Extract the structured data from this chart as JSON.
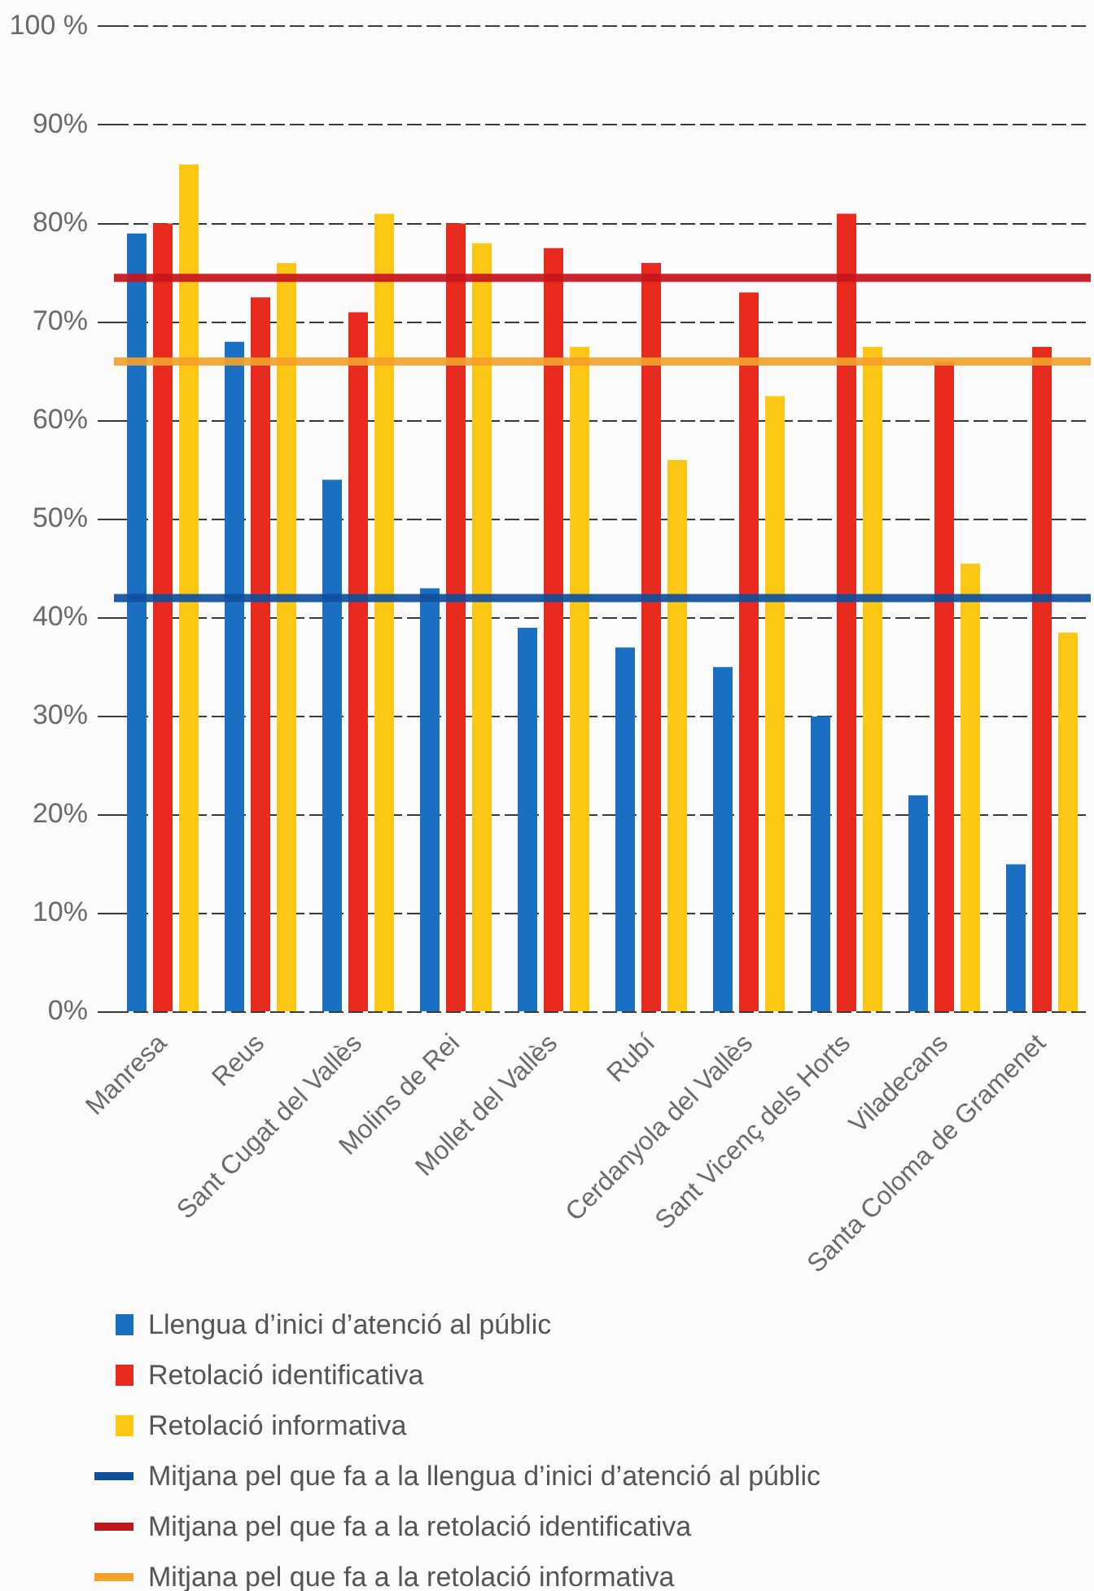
{
  "chart_data": {
    "type": "bar",
    "categories": [
      "Manresa",
      "Reus",
      "Sant Cugat del Vallès",
      "Molins de Rei",
      "Mollet del Vallès",
      "Rubí",
      "Cerdanyola del Vallès",
      "Sant Vicenç dels Horts",
      "Viladecans",
      "Santa Coloma de Gramenet"
    ],
    "series": [
      {
        "name": "Llengua d’inici d’atenció al públic",
        "color": "#1b6fc2",
        "values": [
          79,
          68,
          54,
          43,
          39,
          37,
          35,
          30,
          22,
          15
        ]
      },
      {
        "name": "Retolació identificativa",
        "color": "#e92a1f",
        "values": [
          80,
          72.5,
          71,
          80,
          77.5,
          76,
          73,
          81,
          66,
          67.5
        ]
      },
      {
        "name": "Retolació informativa",
        "color": "#fcc815",
        "values": [
          86,
          76,
          81,
          78,
          67.5,
          56,
          62.5,
          67.5,
          45.5,
          38.5
        ]
      }
    ],
    "ylim": [
      0,
      100
    ],
    "yticks": [
      {
        "value": 0,
        "label": "0%"
      },
      {
        "value": 10,
        "label": "10%"
      },
      {
        "value": 20,
        "label": "20%"
      },
      {
        "value": 30,
        "label": "30%"
      },
      {
        "value": 40,
        "label": "40%"
      },
      {
        "value": 50,
        "label": "50%"
      },
      {
        "value": 60,
        "label": "60%"
      },
      {
        "value": 70,
        "label": "70%"
      },
      {
        "value": 80,
        "label": "80%"
      },
      {
        "value": 90,
        "label": "90%"
      },
      {
        "value": 100,
        "label": "100 %"
      }
    ],
    "grid": "y",
    "legend": "bottom",
    "ref_lines": [
      {
        "axis": "y",
        "value": 42,
        "label": "Mitjana pel que fa a la llengua d’inici d’atenció al públic",
        "color": "#0f4f9c"
      },
      {
        "axis": "y",
        "value": 74.5,
        "label": "Mitjana pel que fa a la retolació identificativa",
        "color": "#c3151c"
      },
      {
        "axis": "y",
        "value": 66,
        "label": "Mitjana pel que fa a la retolació informativa",
        "color": "#f2a12a"
      }
    ]
  }
}
